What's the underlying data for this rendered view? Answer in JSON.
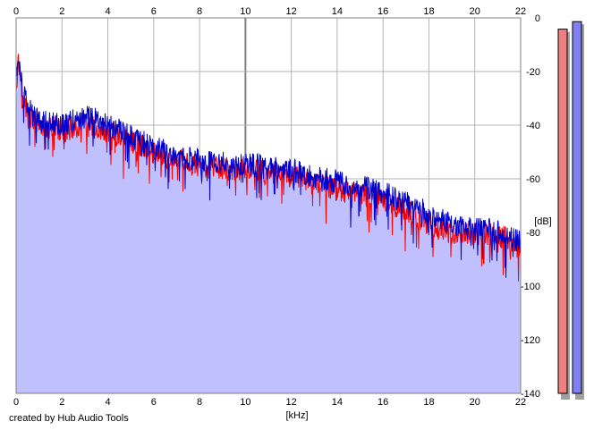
{
  "chart_data": {
    "type": "area",
    "title": "",
    "xlabel": "[kHz]",
    "ylabel": "[dB]",
    "xlim": [
      0,
      22
    ],
    "ylim": [
      -140,
      0
    ],
    "x_ticks": [
      "0",
      "2",
      "4",
      "6",
      "8",
      "10",
      "12",
      "14",
      "16",
      "18",
      "20",
      "22"
    ],
    "y_ticks": [
      "0",
      "-20",
      "-40",
      "-60",
      "-80",
      "-100",
      "-120",
      "-140"
    ],
    "grid": true,
    "colors": {
      "fill": "#c0c0ff",
      "left_channel": "#ff0000",
      "right_channel": "#0000cc",
      "grid": "#b4b4b4",
      "grid_major": "#808080",
      "meter_left": "#f08080",
      "meter_right": "#8080f0"
    },
    "series": [
      {
        "x": [
          0,
          0.1,
          0.2,
          0.3,
          0.5,
          0.7,
          1,
          1.5,
          2,
          2.5,
          3,
          3.5,
          4,
          4.5,
          5,
          5.5,
          6,
          6.5,
          7,
          7.5,
          8,
          8.5,
          9,
          9.5,
          10,
          10.5,
          11,
          11.5,
          12,
          12.5,
          13,
          13.5,
          14,
          14.5,
          15,
          15.5,
          16,
          16.5,
          17,
          17.5,
          18,
          18.5,
          19,
          19.5,
          20,
          20.5,
          21,
          21.5,
          22
        ],
        "values": [
          -25,
          -16,
          -22,
          -30,
          -35,
          -38,
          -40,
          -41,
          -42,
          -41,
          -40,
          -41,
          -43,
          -44,
          -46,
          -48,
          -50,
          -52,
          -53,
          -54,
          -55,
          -56,
          -56,
          -57,
          -57,
          -57,
          -58,
          -58,
          -59,
          -60,
          -61,
          -63,
          -64,
          -65,
          -66,
          -67,
          -68,
          -70,
          -72,
          -74,
          -77,
          -79,
          -80,
          -81,
          -81,
          -81,
          -81,
          -83,
          -86
        ]
      },
      {
        "x": [
          0,
          0.1,
          0.2,
          0.3,
          0.5,
          0.7,
          1,
          1.5,
          2,
          2.5,
          3,
          3.5,
          4,
          4.5,
          5,
          5.5,
          6,
          6.5,
          7,
          7.5,
          8,
          8.5,
          9,
          9.5,
          10,
          10.5,
          11,
          11.5,
          12,
          12.5,
          13,
          13.5,
          14,
          14.5,
          15,
          15.5,
          16,
          16.5,
          17,
          17.5,
          18,
          18.5,
          19,
          19.5,
          20,
          20.5,
          21,
          21.5,
          22
        ],
        "values": [
          -24,
          -14,
          -20,
          -28,
          -33,
          -36,
          -38,
          -39,
          -40,
          -38,
          -37,
          -38,
          -40,
          -42,
          -44,
          -46,
          -48,
          -50,
          -51,
          -52,
          -53,
          -54,
          -54,
          -55,
          -55,
          -55,
          -56,
          -56,
          -57,
          -58,
          -59,
          -60,
          -61,
          -62,
          -63,
          -64,
          -65,
          -67,
          -69,
          -71,
          -73,
          -75,
          -77,
          -78,
          -79,
          -79,
          -80,
          -81,
          -84
        ]
      }
    ]
  },
  "meters": {
    "left_level": 0.97,
    "right_level": 0.99
  },
  "credit": "created by Hub Audio Tools"
}
